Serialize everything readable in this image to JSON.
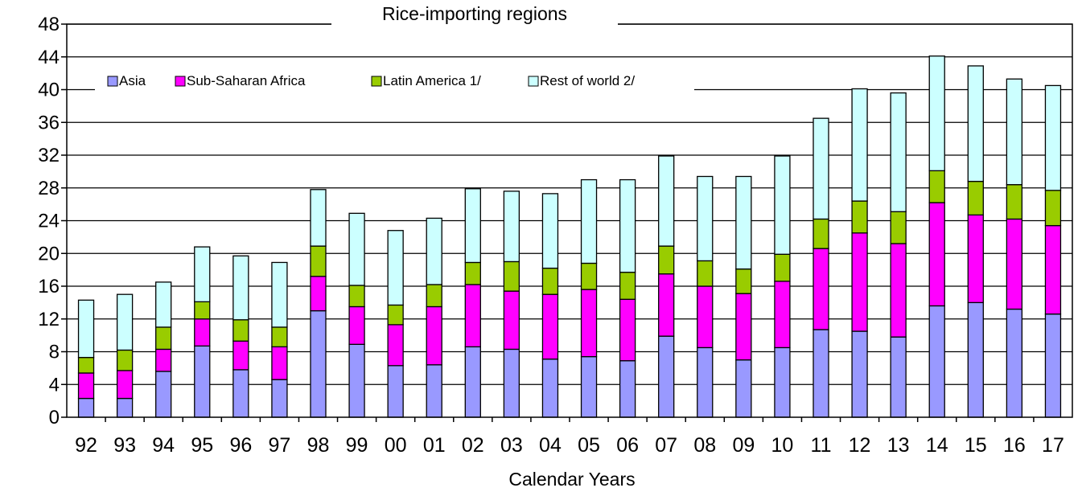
{
  "chart_data": {
    "type": "bar",
    "stacked": true,
    "title": "Rice-importing regions",
    "xlabel": "Calendar Years",
    "ylabel": "",
    "ylim": [
      0,
      48
    ],
    "yticks": [
      0,
      4,
      8,
      12,
      16,
      20,
      24,
      28,
      32,
      36,
      40,
      44,
      48
    ],
    "grid": true,
    "legend_position": "top-left",
    "categories": [
      "92",
      "93",
      "94",
      "95",
      "96",
      "97",
      "98",
      "99",
      "00",
      "01",
      "02",
      "03",
      "04",
      "05",
      "06",
      "07",
      "08",
      "09",
      "10",
      "11",
      "12",
      "13",
      "14",
      "15",
      "16",
      "17"
    ],
    "series": [
      {
        "name": "Asia",
        "color": "#9999ff",
        "values": [
          2.3,
          2.3,
          5.6,
          8.7,
          5.8,
          4.6,
          13.0,
          8.9,
          6.3,
          6.4,
          8.6,
          8.3,
          7.1,
          7.4,
          6.9,
          9.9,
          8.5,
          7.0,
          8.5,
          10.7,
          10.5,
          9.8,
          13.6,
          14.0,
          13.2,
          12.6
        ]
      },
      {
        "name": "Sub-Saharan Africa",
        "color": "#ff00ff",
        "values": [
          3.1,
          3.4,
          2.7,
          3.3,
          3.5,
          4.0,
          4.2,
          4.6,
          5.0,
          7.1,
          7.6,
          7.1,
          7.9,
          8.2,
          7.5,
          7.6,
          7.5,
          8.1,
          8.1,
          9.9,
          12.0,
          11.4,
          12.6,
          10.7,
          11.0,
          10.8
        ]
      },
      {
        "name": "Latin America 1/",
        "color": "#99cc00",
        "values": [
          1.9,
          2.5,
          2.7,
          2.1,
          2.6,
          2.4,
          3.7,
          2.6,
          2.4,
          2.7,
          2.7,
          3.6,
          3.2,
          3.2,
          3.3,
          3.4,
          3.1,
          3.0,
          3.3,
          3.6,
          3.9,
          3.9,
          3.9,
          4.1,
          4.2,
          4.3
        ]
      },
      {
        "name": "Rest of world 2/",
        "color": "#ccffff",
        "values": [
          7.0,
          6.8,
          5.5,
          6.7,
          7.8,
          7.9,
          6.9,
          8.8,
          9.1,
          8.1,
          9.0,
          8.6,
          9.1,
          10.2,
          11.3,
          11.0,
          10.3,
          11.3,
          12.0,
          12.3,
          13.7,
          14.5,
          14.0,
          14.1,
          12.9,
          12.8
        ]
      }
    ]
  }
}
